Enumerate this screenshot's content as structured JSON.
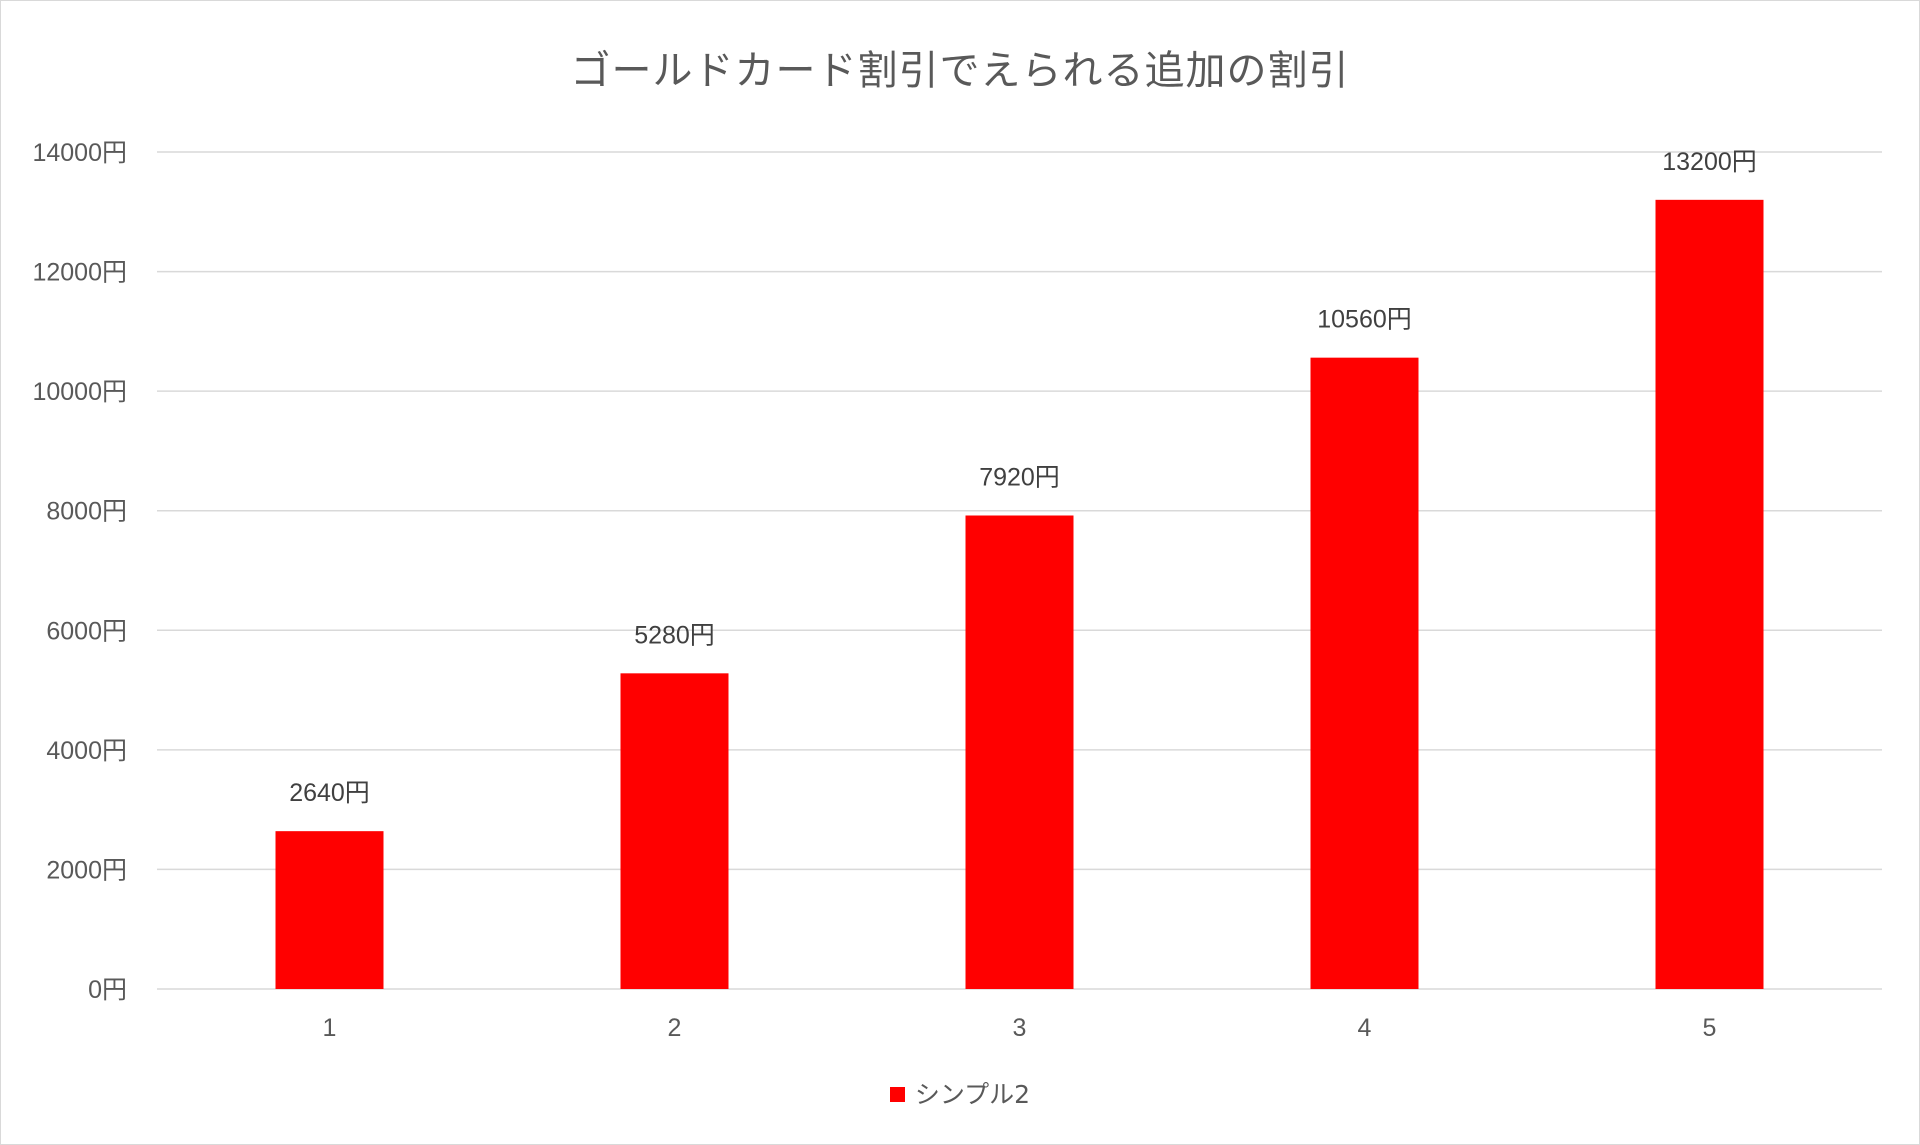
{
  "chart_data": {
    "type": "bar",
    "title": "ゴールドカード割引でえられる追加の割引",
    "xlabel": "",
    "ylabel": "",
    "categories": [
      "1",
      "2",
      "3",
      "4",
      "5"
    ],
    "series": [
      {
        "name": "シンプル2",
        "values": [
          2640,
          5280,
          7920,
          10560,
          13200
        ],
        "color": "#ff0000"
      }
    ],
    "data_labels": [
      "2640円",
      "5280円",
      "7920円",
      "10560円",
      "13200円"
    ],
    "y_ticks": [
      0,
      2000,
      4000,
      6000,
      8000,
      10000,
      12000,
      14000
    ],
    "y_tick_labels": [
      "0円",
      "2000円",
      "4000円",
      "6000円",
      "8000円",
      "10000円",
      "12000円",
      "14000円"
    ],
    "ylim": [
      0,
      14000
    ],
    "grid": true,
    "legend_position": "bottom",
    "colors": {
      "bar": "#ff0000",
      "grid": "#d9d9d9",
      "text": "#595959"
    }
  }
}
